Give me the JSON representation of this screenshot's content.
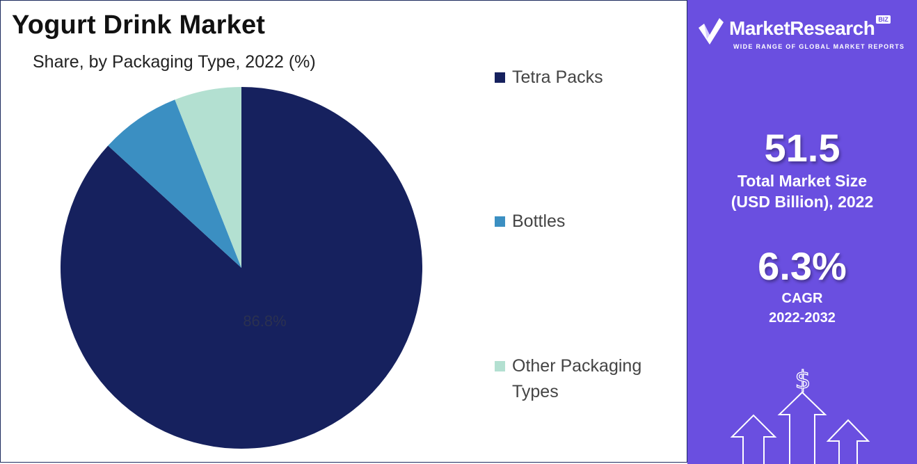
{
  "chart_data": {
    "type": "pie",
    "title": "Yogurt Drink Market",
    "subtitle": "Share, by Packaging Type, 2022 (%)",
    "slices": [
      {
        "label": "Tetra Packs",
        "value": 86.8,
        "color": "#16215e",
        "data_label": "86.8%"
      },
      {
        "label": "Bottles",
        "value": 7.2,
        "color": "#3b8fc2"
      },
      {
        "label": "Other Packaging Types",
        "value": 6.0,
        "color": "#b3e0d1"
      }
    ],
    "legend_position": "right"
  },
  "legend": {
    "items": [
      {
        "label": "Tetra Packs",
        "color": "#16215e"
      },
      {
        "label": "Bottles",
        "color": "#3b8fc2"
      },
      {
        "label": "Other Packaging Types",
        "color": "#b3e0d1"
      }
    ]
  },
  "sidebar": {
    "brand_name": "MarketResearch",
    "brand_suffix": "BIZ",
    "brand_tagline": "WIDE RANGE OF GLOBAL MARKET REPORTS",
    "market_size_value": "51.5",
    "market_size_label_line1": "Total Market Size",
    "market_size_label_line2": "(USD Billion), 2022",
    "cagr_value": "6.3%",
    "cagr_label_line1": "CAGR",
    "cagr_label_line2": "2022-2032",
    "currency_symbol": "$",
    "background_color": "#6a4fe0"
  }
}
